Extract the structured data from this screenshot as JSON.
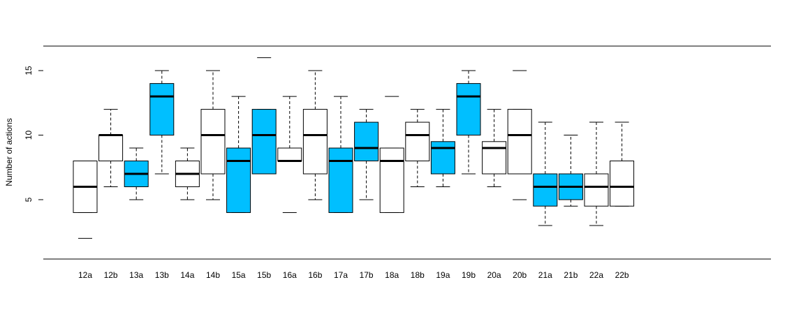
{
  "chart_data": {
    "type": "boxplot",
    "title": "",
    "xlabel": "",
    "ylabel": "Number of actions",
    "ylim": [
      0.4,
      16.9
    ],
    "y_ticks": [
      5,
      10,
      15
    ],
    "grid": false,
    "categories": [
      "12a",
      "12b",
      "13a",
      "13b",
      "14a",
      "14b",
      "15a",
      "15b",
      "16a",
      "16b",
      "17a",
      "17b",
      "18a",
      "18b",
      "19a",
      "19b",
      "20a",
      "20b",
      "21a",
      "21b",
      "22a",
      "22b"
    ],
    "boxes": [
      {
        "label": "12a",
        "q1": 4,
        "median": 6,
        "q3": 8,
        "whisker_low": 4,
        "whisker_high": 8,
        "outliers": [
          2
        ],
        "filled": false
      },
      {
        "label": "12b",
        "q1": 8,
        "median": 10,
        "q3": 10,
        "whisker_low": 6,
        "whisker_high": 12,
        "outliers": [],
        "filled": false
      },
      {
        "label": "13a",
        "q1": 6,
        "median": 7,
        "q3": 8,
        "whisker_low": 5,
        "whisker_high": 9,
        "outliers": [],
        "filled": true
      },
      {
        "label": "13b",
        "q1": 10,
        "median": 13,
        "q3": 14,
        "whisker_low": 7,
        "whisker_high": 15,
        "outliers": [],
        "filled": true
      },
      {
        "label": "14a",
        "q1": 6,
        "median": 7,
        "q3": 8,
        "whisker_low": 5,
        "whisker_high": 9,
        "outliers": [],
        "filled": false
      },
      {
        "label": "14b",
        "q1": 7,
        "median": 10,
        "q3": 12,
        "whisker_low": 5,
        "whisker_high": 15,
        "outliers": [],
        "filled": false
      },
      {
        "label": "15a",
        "q1": 4,
        "median": 8,
        "q3": 9,
        "whisker_low": 4,
        "whisker_high": 13,
        "outliers": [],
        "filled": true
      },
      {
        "label": "15b",
        "q1": 7,
        "median": 10,
        "q3": 12,
        "whisker_low": 7,
        "whisker_high": 12,
        "outliers": [
          16
        ],
        "filled": true
      },
      {
        "label": "16a",
        "q1": 8,
        "median": 8,
        "q3": 9,
        "whisker_low": 8,
        "whisker_high": 13,
        "outliers": [
          4
        ],
        "filled": false
      },
      {
        "label": "16b",
        "q1": 7,
        "median": 10,
        "q3": 12,
        "whisker_low": 5,
        "whisker_high": 15,
        "outliers": [],
        "filled": false
      },
      {
        "label": "17a",
        "q1": 4,
        "median": 8,
        "q3": 9,
        "whisker_low": 4,
        "whisker_high": 13,
        "outliers": [],
        "filled": true
      },
      {
        "label": "17b",
        "q1": 8,
        "median": 9,
        "q3": 11,
        "whisker_low": 5,
        "whisker_high": 12,
        "outliers": [],
        "filled": true
      },
      {
        "label": "18a",
        "q1": 4,
        "median": 8,
        "q3": 9,
        "whisker_low": 4,
        "whisker_high": 9,
        "outliers": [
          13
        ],
        "filled": false
      },
      {
        "label": "18b",
        "q1": 8,
        "median": 10,
        "q3": 11,
        "whisker_low": 6,
        "whisker_high": 12,
        "outliers": [],
        "filled": false
      },
      {
        "label": "19a",
        "q1": 7,
        "median": 9,
        "q3": 9.5,
        "whisker_low": 6,
        "whisker_high": 12,
        "outliers": [],
        "filled": true
      },
      {
        "label": "19b",
        "q1": 10,
        "median": 13,
        "q3": 14,
        "whisker_low": 7,
        "whisker_high": 15,
        "outliers": [],
        "filled": true
      },
      {
        "label": "20a",
        "q1": 7,
        "median": 9,
        "q3": 9.5,
        "whisker_low": 6,
        "whisker_high": 12,
        "outliers": [],
        "filled": false
      },
      {
        "label": "20b",
        "q1": 7,
        "median": 10,
        "q3": 12,
        "whisker_low": 7,
        "whisker_high": 12,
        "outliers": [
          5,
          15
        ],
        "filled": false
      },
      {
        "label": "21a",
        "q1": 4.5,
        "median": 6,
        "q3": 7,
        "whisker_low": 3,
        "whisker_high": 11,
        "outliers": [],
        "filled": true
      },
      {
        "label": "21b",
        "q1": 5,
        "median": 6,
        "q3": 7,
        "whisker_low": 4.5,
        "whisker_high": 10,
        "outliers": [],
        "filled": true
      },
      {
        "label": "22a",
        "q1": 4.5,
        "median": 6,
        "q3": 7,
        "whisker_low": 3,
        "whisker_high": 11,
        "outliers": [],
        "filled": false
      },
      {
        "label": "22b",
        "q1": 4.5,
        "median": 6,
        "q3": 8,
        "whisker_low": 4.5,
        "whisker_high": 11,
        "outliers": [],
        "filled": false
      }
    ],
    "colors": {
      "fill_highlight": "#00bfff",
      "fill_plain": "#ffffff",
      "stroke": "#000000"
    }
  }
}
